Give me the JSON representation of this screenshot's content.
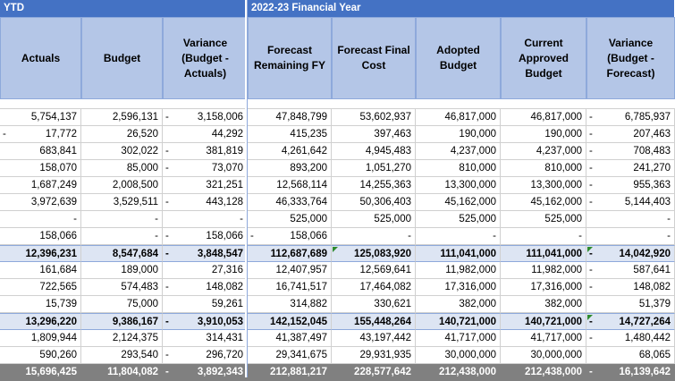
{
  "left_title": "YTD",
  "right_title": "2022-23 Financial Year",
  "left_headers": [
    "Actuals",
    "Budget",
    "Variance\n(Budget -\nActuals)"
  ],
  "right_headers": [
    "Forecast\nRemaining FY",
    "Forecast Final\nCost",
    "Adopted\nBudget",
    "Current\nApproved\nBudget",
    "Variance\n(Budget -\nForecast)"
  ],
  "rows": [
    {
      "type": "data",
      "cells": [
        [
          "",
          "5,754,137"
        ],
        [
          "",
          "2,596,131"
        ],
        [
          "-",
          "3,158,006"
        ],
        [
          "",
          "47,848,799"
        ],
        [
          "",
          "53,602,937"
        ],
        [
          "",
          "46,817,000"
        ],
        [
          "",
          "46,817,000"
        ],
        [
          "-",
          "6,785,937"
        ]
      ]
    },
    {
      "type": "data",
      "cells": [
        [
          "-",
          "17,772"
        ],
        [
          "",
          "26,520"
        ],
        [
          "",
          "44,292"
        ],
        [
          "",
          "415,235"
        ],
        [
          "",
          "397,463"
        ],
        [
          "",
          "190,000"
        ],
        [
          "",
          "190,000"
        ],
        [
          "-",
          "207,463"
        ]
      ]
    },
    {
      "type": "data",
      "cells": [
        [
          "",
          "683,841"
        ],
        [
          "",
          "302,022"
        ],
        [
          "-",
          "381,819"
        ],
        [
          "",
          "4,261,642"
        ],
        [
          "",
          "4,945,483"
        ],
        [
          "",
          "4,237,000"
        ],
        [
          "",
          "4,237,000"
        ],
        [
          "-",
          "708,483"
        ]
      ]
    },
    {
      "type": "data",
      "cells": [
        [
          "",
          "158,070"
        ],
        [
          "",
          "85,000"
        ],
        [
          "-",
          "73,070"
        ],
        [
          "",
          "893,200"
        ],
        [
          "",
          "1,051,270"
        ],
        [
          "",
          "810,000"
        ],
        [
          "",
          "810,000"
        ],
        [
          "-",
          "241,270"
        ]
      ]
    },
    {
      "type": "data",
      "cells": [
        [
          "",
          "1,687,249"
        ],
        [
          "",
          "2,008,500"
        ],
        [
          "",
          "321,251"
        ],
        [
          "",
          "12,568,114"
        ],
        [
          "",
          "14,255,363"
        ],
        [
          "",
          "13,300,000"
        ],
        [
          "",
          "13,300,000"
        ],
        [
          "-",
          "955,363"
        ]
      ]
    },
    {
      "type": "data",
      "cells": [
        [
          "",
          "3,972,639"
        ],
        [
          "",
          "3,529,511"
        ],
        [
          "-",
          "443,128"
        ],
        [
          "",
          "46,333,764"
        ],
        [
          "",
          "50,306,403"
        ],
        [
          "",
          "45,162,000"
        ],
        [
          "",
          "45,162,000"
        ],
        [
          "-",
          "5,144,403"
        ]
      ]
    },
    {
      "type": "data",
      "cells": [
        [
          "",
          "-"
        ],
        [
          "",
          "-"
        ],
        [
          "",
          "-"
        ],
        [
          "",
          "525,000"
        ],
        [
          "",
          "525,000"
        ],
        [
          "",
          "525,000"
        ],
        [
          "",
          "525,000"
        ],
        [
          "",
          "-"
        ]
      ]
    },
    {
      "type": "data",
      "cells": [
        [
          "",
          "158,066"
        ],
        [
          "",
          "-"
        ],
        [
          "-",
          "158,066"
        ],
        [
          "-",
          "158,066"
        ],
        [
          "",
          "-"
        ],
        [
          "",
          "-"
        ],
        [
          "",
          "-"
        ],
        [
          "",
          "-"
        ]
      ]
    },
    {
      "type": "sub",
      "cells": [
        [
          "",
          "12,396,231"
        ],
        [
          "",
          "8,547,684"
        ],
        [
          "-",
          "3,848,547"
        ],
        [
          "",
          "112,687,689"
        ],
        [
          "",
          "125,083,920"
        ],
        [
          "",
          "111,041,000"
        ],
        [
          "",
          "111,041,000"
        ],
        [
          "-",
          "14,042,920"
        ]
      ]
    },
    {
      "type": "data",
      "cells": [
        [
          "",
          "161,684"
        ],
        [
          "",
          "189,000"
        ],
        [
          "",
          "27,316"
        ],
        [
          "",
          "12,407,957"
        ],
        [
          "",
          "12,569,641"
        ],
        [
          "",
          "11,982,000"
        ],
        [
          "",
          "11,982,000"
        ],
        [
          "-",
          "587,641"
        ]
      ]
    },
    {
      "type": "data",
      "cells": [
        [
          "",
          "722,565"
        ],
        [
          "",
          "574,483"
        ],
        [
          "-",
          "148,082"
        ],
        [
          "",
          "16,741,517"
        ],
        [
          "",
          "17,464,082"
        ],
        [
          "",
          "17,316,000"
        ],
        [
          "",
          "17,316,000"
        ],
        [
          "-",
          "148,082"
        ]
      ]
    },
    {
      "type": "data",
      "cells": [
        [
          "",
          "15,739"
        ],
        [
          "",
          "75,000"
        ],
        [
          "",
          "59,261"
        ],
        [
          "",
          "314,882"
        ],
        [
          "",
          "330,621"
        ],
        [
          "",
          "382,000"
        ],
        [
          "",
          "382,000"
        ],
        [
          "",
          "51,379"
        ]
      ]
    },
    {
      "type": "sub",
      "cells": [
        [
          "",
          "13,296,220"
        ],
        [
          "",
          "9,386,167"
        ],
        [
          "-",
          "3,910,053"
        ],
        [
          "",
          "142,152,045"
        ],
        [
          "",
          "155,448,264"
        ],
        [
          "",
          "140,721,000"
        ],
        [
          "",
          "140,721,000"
        ],
        [
          "-",
          "14,727,264"
        ]
      ]
    },
    {
      "type": "data",
      "cells": [
        [
          "",
          "1,809,944"
        ],
        [
          "",
          "2,124,375"
        ],
        [
          "",
          "314,431"
        ],
        [
          "",
          "41,387,497"
        ],
        [
          "",
          "43,197,442"
        ],
        [
          "",
          "41,717,000"
        ],
        [
          "",
          "41,717,000"
        ],
        [
          "-",
          "1,480,442"
        ]
      ]
    },
    {
      "type": "data",
      "cells": [
        [
          "",
          "590,260"
        ],
        [
          "",
          "293,540"
        ],
        [
          "-",
          "296,720"
        ],
        [
          "",
          "29,341,675"
        ],
        [
          "",
          "29,931,935"
        ],
        [
          "",
          "30,000,000"
        ],
        [
          "",
          "30,000,000"
        ],
        [
          "",
          "68,065"
        ]
      ]
    },
    {
      "type": "total",
      "cells": [
        [
          "",
          "15,696,425"
        ],
        [
          "",
          "11,804,082"
        ],
        [
          "-",
          "3,892,343"
        ],
        [
          "",
          "212,881,217"
        ],
        [
          "",
          "228,577,642"
        ],
        [
          "",
          "212,438,000"
        ],
        [
          "",
          "212,438,000"
        ],
        [
          "-",
          "16,139,642"
        ]
      ]
    }
  ],
  "colors": {
    "title_bg": "#4472c4",
    "header_bg": "#b4c6e7",
    "subtotal_bg": "#dde5f3",
    "total_bg": "#808080"
  }
}
